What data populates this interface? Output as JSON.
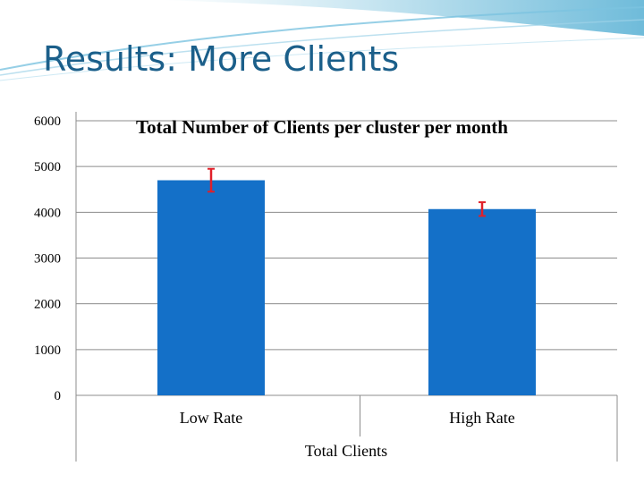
{
  "slide": {
    "title": "Results: More Clients",
    "colors": {
      "title": "#1b5f8a",
      "header_wave": "#5fb4d6",
      "bar": "#1470c8",
      "error_bar": "#e0202a"
    }
  },
  "chart_data": {
    "type": "bar",
    "title": "Total Number of Clients per cluster per month",
    "categories": [
      "Low Rate",
      "High Rate"
    ],
    "xlabel": "Total Clients",
    "ylabel": "",
    "ylim": [
      0,
      6000
    ],
    "yticks": [
      0,
      1000,
      2000,
      3000,
      4000,
      5000,
      6000
    ],
    "series": [
      {
        "values": [
          4700,
          4070
        ],
        "errors": [
          250,
          150
        ]
      }
    ],
    "grid": true,
    "legend": "none"
  }
}
